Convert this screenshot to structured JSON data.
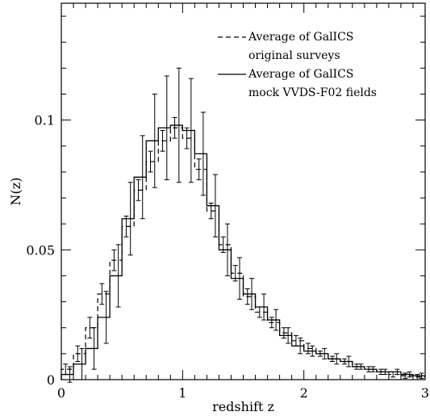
{
  "chart_data": {
    "type": "line",
    "title": "",
    "xlabel": "redshift z",
    "ylabel": "N(z)",
    "xlim": [
      0,
      3
    ],
    "ylim": [
      0,
      0.145
    ],
    "xticks": [
      0,
      1,
      2,
      3
    ],
    "xtick_labels": [
      "0",
      "1",
      "2",
      "3"
    ],
    "yticks": [
      0,
      0.05,
      0.1
    ],
    "ytick_labels": [
      "0",
      "0.05",
      "0.1"
    ],
    "x_minor_step": 0.1,
    "y_minor_step": 0.01,
    "grid": false,
    "legend_position": "top-right",
    "legend_lines": [
      [
        "Average of GalICS",
        "original surveys"
      ],
      [
        "Average of GalICS",
        "mock VVDS-F02 fields"
      ]
    ],
    "bin_width": 0.1,
    "series": [
      {
        "name": "Average of GalICS original surveys",
        "style": "dashed",
        "x": [
          0.05,
          0.15,
          0.25,
          0.35,
          0.45,
          0.55,
          0.65,
          0.75,
          0.85,
          0.95,
          1.05,
          1.15,
          1.25,
          1.35,
          1.45,
          1.55,
          1.65,
          1.75,
          1.85,
          1.95,
          2.05,
          2.15,
          2.25,
          2.35,
          2.45,
          2.55,
          2.65,
          2.75,
          2.85,
          2.95
        ],
        "values": [
          0.004,
          0.01,
          0.02,
          0.033,
          0.046,
          0.059,
          0.073,
          0.084,
          0.092,
          0.097,
          0.093,
          0.081,
          0.065,
          0.052,
          0.041,
          0.032,
          0.026,
          0.022,
          0.018,
          0.015,
          0.012,
          0.01,
          0.008,
          0.007,
          0.005,
          0.004,
          0.003,
          0.002,
          0.0015,
          0.001
        ],
        "errors": [
          0.002,
          0.003,
          0.004,
          0.004,
          0.004,
          0.004,
          0.004,
          0.004,
          0.004,
          0.004,
          0.004,
          0.004,
          0.003,
          0.003,
          0.003,
          0.003,
          0.002,
          0.002,
          0.002,
          0.002,
          0.002,
          0.001,
          0.001,
          0.001,
          0.001,
          0.001,
          0.001,
          0.001,
          0.001,
          0.001
        ]
      },
      {
        "name": "Average of GalICS mock VVDS-F02 fields",
        "style": "solid",
        "x": [
          0.05,
          0.15,
          0.25,
          0.35,
          0.45,
          0.55,
          0.65,
          0.75,
          0.85,
          0.95,
          1.05,
          1.15,
          1.25,
          1.35,
          1.45,
          1.55,
          1.65,
          1.75,
          1.85,
          1.95,
          2.05,
          2.15,
          2.25,
          2.35,
          2.45,
          2.55,
          2.65,
          2.75,
          2.85,
          2.95
        ],
        "values": [
          0.002,
          0.006,
          0.012,
          0.024,
          0.04,
          0.062,
          0.078,
          0.092,
          0.097,
          0.098,
          0.096,
          0.087,
          0.067,
          0.05,
          0.039,
          0.033,
          0.028,
          0.023,
          0.017,
          0.013,
          0.011,
          0.01,
          0.008,
          0.007,
          0.005,
          0.004,
          0.003,
          0.003,
          0.002,
          0.0015
        ],
        "errors": [
          0.003,
          0.006,
          0.008,
          0.01,
          0.012,
          0.014,
          0.016,
          0.018,
          0.02,
          0.022,
          0.02,
          0.016,
          0.012,
          0.01,
          0.008,
          0.006,
          0.005,
          0.004,
          0.003,
          0.003,
          0.002,
          0.002,
          0.002,
          0.002,
          0.001,
          0.001,
          0.001,
          0.001,
          0.001,
          0.001
        ]
      }
    ]
  }
}
